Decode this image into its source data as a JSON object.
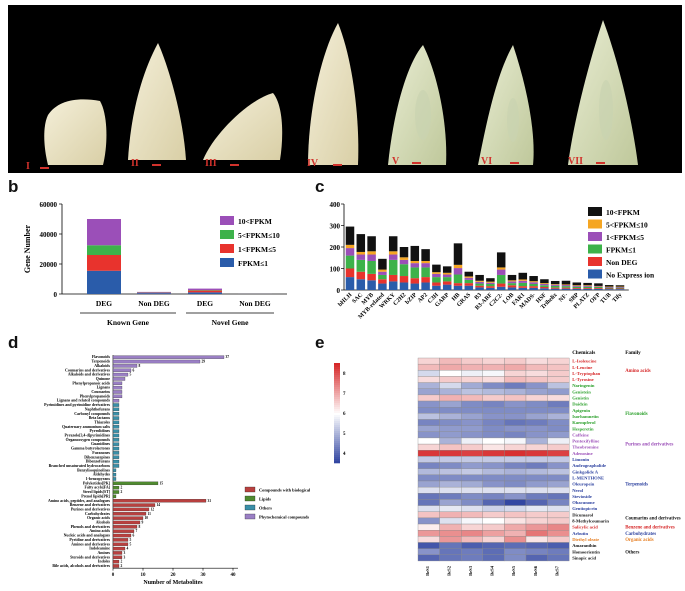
{
  "panels": {
    "a": "a",
    "b": "b",
    "c": "c",
    "d": "d",
    "e": "e"
  },
  "stages": [
    "I",
    "II",
    "III",
    "IV",
    "V",
    "VI",
    "VII"
  ],
  "colors": {
    "purple": "#9b4fb8",
    "green": "#3db24a",
    "red": "#e8332d",
    "blue": "#2a5caa",
    "black": "#111111",
    "dark_red": "#b8403f",
    "olive": "#4f8a2f",
    "light_purple": "#9a7fc4"
  },
  "chart_b": {
    "type": "bar",
    "ylabel": "Gene Number",
    "yticks": [
      "0",
      "20000",
      "40000",
      "60000"
    ],
    "ylim": [
      0,
      60000
    ],
    "categories": [
      "DEG",
      "Non DEG",
      "DEG",
      "Non DEG"
    ],
    "groups": [
      "Known Gene",
      "Novel Gene"
    ],
    "legend": [
      "10<FPKM",
      "5<FPKM≤10",
      "1<FPKM≤5",
      "FPKM≤1"
    ],
    "series": [
      {
        "name": "FPKM≤1",
        "color": "#2a5caa",
        "values": [
          15500,
          600,
          1100,
          40
        ]
      },
      {
        "name": "1<FPKM≤5",
        "color": "#e8332d",
        "values": [
          10500,
          250,
          1200,
          20
        ]
      },
      {
        "name": "5<FPKM≤10",
        "color": "#3db24a",
        "values": [
          6500,
          150,
          300,
          10
        ]
      },
      {
        "name": "10<FPKM",
        "color": "#9b4fb8",
        "values": [
          17500,
          400,
          1000,
          20
        ]
      }
    ]
  },
  "chart_c": {
    "type": "bar",
    "yticks": [
      "0",
      "100",
      "200",
      "300",
      "400"
    ],
    "ylim": [
      0,
      400
    ],
    "categories": [
      "bHLH",
      "SAC",
      "MYB",
      "MYB-related",
      "WRKY",
      "C2H2",
      "bZIP",
      "AP2",
      "C3H",
      "GARP",
      "HB",
      "GRAS",
      "B3",
      "B3-ARF",
      "C2C2-",
      "LOB",
      "FAR1",
      "MADS-",
      "HSF",
      "Trihelix",
      "NF-",
      "SBP",
      "PLATZ",
      "OFP",
      "TUB",
      "Tify"
    ],
    "legend": [
      "10<FPKM",
      "5<FPKM≤10",
      "1<FPKM≤5",
      "FPKM≤1",
      "Non DEG",
      "No Express ion"
    ],
    "series": [
      {
        "name": "No Express ion",
        "color": "#2a5caa",
        "values": [
          60,
          50,
          45,
          30,
          40,
          35,
          30,
          35,
          20,
          25,
          20,
          20,
          12,
          10,
          15,
          12,
          10,
          10,
          8,
          6,
          6,
          5,
          5,
          5,
          4,
          4
        ]
      },
      {
        "name": "Non DEG",
        "color": "#e8332d",
        "values": [
          40,
          35,
          30,
          20,
          30,
          30,
          25,
          25,
          15,
          15,
          12,
          12,
          8,
          8,
          15,
          10,
          8,
          8,
          6,
          5,
          5,
          4,
          4,
          4,
          3,
          3
        ]
      },
      {
        "name": "FPKM≤1",
        "color": "#3db24a",
        "values": [
          60,
          55,
          60,
          20,
          70,
          55,
          50,
          45,
          25,
          20,
          40,
          15,
          10,
          10,
          40,
          10,
          15,
          10,
          8,
          8,
          7,
          6,
          6,
          5,
          4,
          4
        ]
      },
      {
        "name": "1<FPKM≤5",
        "color": "#9b4fb8",
        "values": [
          35,
          25,
          30,
          15,
          25,
          20,
          20,
          20,
          15,
          12,
          30,
          10,
          8,
          6,
          25,
          8,
          10,
          8,
          6,
          5,
          5,
          4,
          4,
          3,
          3,
          3
        ]
      },
      {
        "name": "5<FPKM≤10",
        "color": "#f5a623",
        "values": [
          15,
          12,
          15,
          10,
          15,
          12,
          10,
          10,
          8,
          8,
          15,
          6,
          5,
          5,
          10,
          5,
          6,
          5,
          4,
          3,
          3,
          3,
          3,
          2,
          2,
          2
        ]
      },
      {
        "name": "10<FPKM",
        "color": "#111111",
        "values": [
          85,
          83,
          70,
          50,
          70,
          48,
          70,
          55,
          35,
          30,
          100,
          22,
          27,
          16,
          70,
          25,
          31,
          24,
          18,
          15,
          17,
          13,
          11,
          12,
          7,
          6
        ]
      }
    ]
  },
  "chart_d": {
    "type": "bar",
    "xlabel": "Number of Metabolites",
    "xticks": [
      "0",
      "10",
      "20",
      "30",
      "40"
    ],
    "xlim": [
      0,
      40
    ],
    "legend": [
      "Compounds with biological roles",
      "Lipids",
      "Others",
      "Phytochemical compounds"
    ],
    "categories": [
      "Flavonoids",
      "Terpenoids",
      "Alkaloids",
      "Coumarins and derivatives",
      "Alkaloids and derivatives",
      "Quinone",
      "Phenylpropanoic acids",
      "Lignans",
      "Coumarins",
      "Phenylpropanoids",
      "Lignans and related compounds",
      "Pyrimidines and pyrimidine derivatives",
      "Naphthofurans",
      "Carbonyl compounds",
      "Beta lactams",
      "Thiazoles",
      "Quaternary ammonium salts",
      "Pyrrolidines",
      "Pyrazolo[3,4-d]pyrimidines",
      "Organooxygen compounds",
      "Guanidines",
      "Gamma butyrolactones",
      "Furanones",
      "Dibenzazepines",
      "Dibenzofurans",
      "Branched unsaturated hydrocarbons",
      "Benzylisoquinolines",
      "Aldehydes",
      "1-benzopyrans",
      "Polyketides[PK]",
      "Fatty acyls[FA]",
      "Sterol lipids[ST]",
      "Prenol lipids[PR]",
      "Amino acids, peptides, and analogues",
      "Benzene and derivatives",
      "Purines and derivatives",
      "Carbohydrates",
      "Organic acids",
      "Alcohols",
      "Phenols and derivatives",
      "Amino acids",
      "Nucleic acids and analogues",
      "Pyridine and derivatives",
      "Amines and derivatives",
      "Indoleamine",
      "Amines",
      "Steroids and derivatives",
      "Indoles",
      "Bile acids, alcohols and derivatives"
    ],
    "values": [
      37,
      29,
      8,
      6,
      5,
      4,
      3,
      3,
      3,
      3,
      2,
      2,
      2,
      2,
      2,
      2,
      2,
      2,
      2,
      2,
      2,
      2,
      2,
      2,
      2,
      2,
      1,
      1,
      1,
      15,
      2,
      2,
      1,
      31,
      14,
      12,
      11,
      10,
      9,
      8,
      7,
      6,
      5,
      5,
      4,
      3,
      3,
      2,
      2
    ],
    "groups": [
      "Phytochemical compounds",
      "Phytochemical compounds",
      "Phytochemical compounds",
      "Phytochemical compounds",
      "Phytochemical compounds",
      "Phytochemical compounds",
      "Phytochemical compounds",
      "Phytochemical compounds",
      "Phytochemical compounds",
      "Phytochemical compounds",
      "Phytochemical compounds",
      "Others",
      "Others",
      "Others",
      "Others",
      "Others",
      "Others",
      "Others",
      "Others",
      "Others",
      "Others",
      "Others",
      "Others",
      "Others",
      "Others",
      "Others",
      "Others",
      "Others",
      "Others",
      "Lipids",
      "Lipids",
      "Lipids",
      "Lipids",
      "Compounds with biological roles",
      "Compounds with biological roles",
      "Compounds with biological roles",
      "Compounds with biological roles",
      "Compounds with biological roles",
      "Compounds with biological roles",
      "Compounds with biological roles",
      "Compounds with biological roles",
      "Compounds with biological roles",
      "Compounds with biological roles",
      "Compounds with biological roles",
      "Compounds with biological roles",
      "Compounds with biological roles",
      "Compounds with biological roles",
      "Compounds with biological roles",
      "Compounds with biological roles"
    ],
    "value_labels": [
      "37",
      "29",
      "8",
      "6",
      "5",
      "",
      "",
      "",
      "",
      "",
      "",
      "",
      "",
      "",
      "",
      "",
      "",
      "",
      "",
      "",
      "",
      "",
      "",
      "",
      "",
      "",
      "",
      "",
      "",
      "15",
      "2",
      "2",
      "",
      "31",
      "14",
      "12",
      "11",
      "10",
      "9",
      "8",
      "7",
      "6",
      "5",
      "5",
      "4",
      "3",
      "3",
      "2",
      "2"
    ]
  },
  "chart_e": {
    "type": "heatmap",
    "header_chemicals": "Chemicals",
    "header_family": "Family",
    "scale_ticks": [
      "8",
      "7",
      "6",
      "5",
      "4"
    ],
    "columns": [
      "BeS1",
      "BeS2",
      "BeS3",
      "BeS4",
      "BeS5",
      "BeS6",
      "BeS7"
    ],
    "rows": [
      {
        "name": "L-Isoleucine",
        "color": "#d62728"
      },
      {
        "name": "L-Leucine",
        "color": "#d62728"
      },
      {
        "name": "L-Tryptophan",
        "color": "#d62728"
      },
      {
        "name": "L-Tyrosine",
        "color": "#d62728"
      },
      {
        "name": "Naringenin",
        "color": "#2ca02c"
      },
      {
        "name": "Genistein",
        "color": "#2ca02c"
      },
      {
        "name": "Genistin",
        "color": "#2ca02c"
      },
      {
        "name": "Daidzin",
        "color": "#2ca02c"
      },
      {
        "name": "Apigenin",
        "color": "#2ca02c"
      },
      {
        "name": "Isorhamnetin",
        "color": "#2ca02c"
      },
      {
        "name": "Kaempferol",
        "color": "#2ca02c"
      },
      {
        "name": "Hesperetin",
        "color": "#2ca02c"
      },
      {
        "name": "Caffeine",
        "color": "#9b4fb8"
      },
      {
        "name": "Pentoxifylline",
        "color": "#9b4fb8"
      },
      {
        "name": "Theobromine",
        "color": "#9b4fb8"
      },
      {
        "name": "Adenosine",
        "color": "#9b4fb8"
      },
      {
        "name": "Limonin",
        "color": "#2a3f9e"
      },
      {
        "name": "Andrographolide",
        "color": "#2a3f9e"
      },
      {
        "name": "Ginkgolide A",
        "color": "#2a3f9e"
      },
      {
        "name": "L-MENTHONE",
        "color": "#2a3f9e"
      },
      {
        "name": "Oleuropein",
        "color": "#2a3f9e"
      },
      {
        "name": "Nerol",
        "color": "#2a3f9e"
      },
      {
        "name": "Stevioside",
        "color": "#2a3f9e"
      },
      {
        "name": "Obacunone",
        "color": "#2a3f9e"
      },
      {
        "name": "Gentiopicrin",
        "color": "#2a3f9e"
      },
      {
        "name": "Dicumarol",
        "color": "#111111"
      },
      {
        "name": "8-Methylcoumarin",
        "color": "#111111"
      },
      {
        "name": "Salicylic acid",
        "color": "#d62728"
      },
      {
        "name": "Arbutin",
        "color": "#2a3f9e"
      },
      {
        "name": "Diethyl oleate",
        "color": "#e67e22"
      },
      {
        "name": "Amaranthin",
        "color": "#111111"
      },
      {
        "name": "Homoorientin",
        "color": "#111111"
      },
      {
        "name": "Sinapic acid",
        "color": "#111111"
      }
    ],
    "families": [
      {
        "name": "Amino acids",
        "color": "#d62728"
      },
      {
        "name": "Flavonoids",
        "color": "#2ca02c"
      },
      {
        "name": "Purines and derivatives",
        "color": "#9b4fb8"
      },
      {
        "name": "Terpenoids",
        "color": "#2a3f9e"
      },
      {
        "name": "Coumarins and derivatives",
        "color": "#111111"
      },
      {
        "name": "Benzene and derivatives",
        "color": "#d62728"
      },
      {
        "name": "Carbohydrates",
        "color": "#2a3f9e"
      },
      {
        "name": "Organic acids",
        "color": "#e67e22"
      },
      {
        "name": "Others",
        "color": "#111111"
      }
    ],
    "values": [
      [
        6.5,
        6.8,
        6.6,
        6.5,
        6.6,
        6.4,
        6.5
      ],
      [
        6.8,
        7.0,
        6.9,
        6.9,
        7.0,
        6.8,
        6.7
      ],
      [
        5.5,
        6.0,
        5.8,
        5.9,
        6.5,
        6.4,
        6.6
      ],
      [
        6.4,
        6.6,
        6.5,
        6.4,
        6.8,
        6.7,
        6.6
      ],
      [
        5.0,
        5.5,
        4.9,
        4.5,
        4.3,
        4.6,
        5.2
      ],
      [
        4.8,
        5.0,
        5.2,
        5.1,
        5.0,
        4.8,
        4.7
      ],
      [
        6.6,
        6.9,
        6.8,
        6.6,
        6.7,
        6.5,
        6.4
      ],
      [
        4.6,
        4.8,
        4.5,
        4.4,
        4.6,
        4.5,
        4.3
      ],
      [
        4.5,
        4.5,
        4.5,
        4.5,
        4.5,
        4.5,
        4.5
      ],
      [
        5.2,
        5.0,
        4.8,
        4.6,
        4.6,
        4.8,
        5.0
      ],
      [
        4.4,
        4.5,
        4.6,
        4.4,
        4.2,
        4.3,
        4.5
      ],
      [
        4.8,
        4.7,
        4.7,
        4.5,
        4.6,
        4.6,
        4.5
      ],
      [
        4.6,
        4.7,
        4.6,
        4.5,
        4.4,
        4.6,
        4.7
      ],
      [
        6.0,
        5.0,
        5.8,
        6.0,
        5.9,
        5.0,
        5.8
      ],
      [
        6.5,
        6.7,
        6.6,
        6.3,
        6.5,
        6.5,
        6.6
      ],
      [
        8.3,
        8.3,
        8.2,
        8.3,
        8.4,
        8.3,
        8.2
      ],
      [
        5.3,
        5.3,
        5.3,
        5.3,
        5.3,
        5.3,
        5.3
      ],
      [
        4.4,
        4.5,
        4.7,
        4.6,
        4.4,
        4.3,
        4.6
      ],
      [
        5.1,
        5.2,
        5.3,
        5.1,
        5.0,
        5.1,
        5.2
      ],
      [
        4.5,
        4.5,
        4.5,
        4.5,
        4.5,
        4.5,
        4.5
      ],
      [
        4.8,
        5.0,
        4.9,
        4.6,
        4.5,
        4.7,
        4.8
      ],
      [
        5.6,
        5.6,
        5.6,
        5.6,
        5.6,
        5.6,
        5.6
      ],
      [
        4.2,
        4.3,
        4.5,
        4.4,
        4.6,
        4.3,
        4.2
      ],
      [
        4.2,
        4.8,
        4.5,
        4.0,
        3.6,
        4.0,
        4.4
      ],
      [
        5.6,
        5.7,
        5.6,
        5.4,
        5.5,
        5.7,
        5.6
      ],
      [
        6.7,
        6.9,
        6.8,
        6.6,
        6.7,
        6.6,
        6.6
      ],
      [
        4.6,
        5.6,
        5.9,
        6.0,
        6.3,
        6.5,
        6.6
      ],
      [
        6.2,
        6.9,
        6.5,
        6.6,
        7.0,
        7.2,
        7.4
      ],
      [
        7.2,
        7.3,
        7.4,
        7.1,
        6.9,
        7.6,
        7.3
      ],
      [
        6.4,
        7.2,
        6.8,
        6.5,
        7.3,
        6.3,
        6.6
      ],
      [
        3.8,
        4.2,
        3.9,
        4.0,
        4.1,
        4.0,
        3.9
      ],
      [
        4.6,
        4.2,
        4.3,
        4.1,
        4.5,
        4.4,
        4.3
      ],
      [
        4.0,
        4.2,
        4.3,
        4.1,
        4.5,
        4.0,
        4.2
      ]
    ]
  }
}
